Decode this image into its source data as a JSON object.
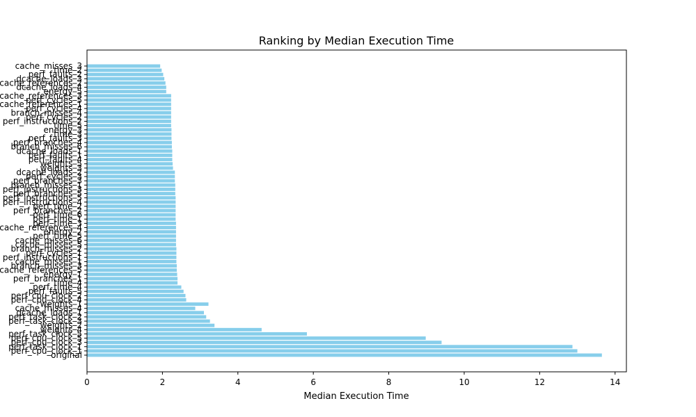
{
  "chart_data": {
    "type": "bar",
    "orientation": "horizontal",
    "title": "Ranking by Median Execution Time",
    "xlabel": "Median Execution Time",
    "ylabel": "",
    "xlim": [
      0,
      14.3
    ],
    "xticks": [
      0,
      2,
      4,
      6,
      8,
      10,
      12,
      14
    ],
    "grid": false,
    "bar_color": "#87ceeb",
    "categories": [
      "original",
      "perf_cpu_clock_1",
      "perf_task_clock_1",
      "perf_cpu_clock_3",
      "perf_cpu_clock_5",
      "perf_task_clock_5",
      "weights_4",
      "weights_2",
      "perf_task_clock_3",
      "perf_task_clock_2",
      "dcache_loads_1",
      "cache_misses_4",
      "weights_1",
      "perf_cpu_clock_4",
      "perf_cpu_clock_2",
      "perf_faults_5",
      "perf_time_4",
      "time_4",
      "perf_branches_1",
      "energy_1",
      "cache_references_5",
      "branch_misses_3",
      "cache_misses_1",
      "perf_instructions_1",
      "perf_cycles_1",
      "branch_misses_2",
      "cache_misses_5",
      "cache_misses_6",
      "perf_time_5",
      "energy_2",
      "cache_references_4",
      "perf_time_3",
      "perf_time_1",
      "perf_time_6",
      "perf_branches_2",
      "perf_time_2",
      "perf_instructions_4",
      "perf_instructions_5",
      "perf_branches_5",
      "perf_instructions_3",
      "branch_misses_1",
      "perf_branches_3",
      "perf_cycles_3",
      "dcache_loads_2",
      "weights_3",
      "weights_5",
      "perf_faults_4",
      "perf_faults_1",
      "dcache_loads_1",
      "branch_misses_6",
      "perf_branches_4",
      "perf_faults_3",
      "time_3",
      "energy_3",
      "time_5",
      "perf_instructions_2",
      "perf_cycles_2",
      "branch_misses_4",
      "perf_cycles_4",
      "cache_references_1",
      "perf_cycles_5",
      "cache_references_3",
      "energy_5",
      "dcache_loads_4",
      "cache_references_2",
      "dcache_loads_3",
      "perf_faults_2",
      "time_2",
      "cache_misses_3"
    ],
    "values": [
      13.65,
      13.0,
      12.87,
      9.4,
      8.98,
      5.83,
      4.63,
      3.38,
      3.26,
      3.16,
      3.1,
      2.87,
      3.22,
      2.63,
      2.61,
      2.56,
      2.5,
      2.4,
      2.4,
      2.39,
      2.38,
      2.38,
      2.37,
      2.37,
      2.37,
      2.37,
      2.36,
      2.36,
      2.36,
      2.36,
      2.36,
      2.36,
      2.35,
      2.35,
      2.35,
      2.35,
      2.35,
      2.35,
      2.34,
      2.34,
      2.34,
      2.33,
      2.33,
      2.33,
      2.28,
      2.27,
      2.26,
      2.26,
      2.26,
      2.25,
      2.25,
      2.24,
      2.24,
      2.24,
      2.23,
      2.23,
      2.23,
      2.23,
      2.23,
      2.23,
      2.23,
      2.23,
      2.1,
      2.1,
      2.08,
      2.05,
      2.02,
      1.98,
      1.94
    ]
  }
}
